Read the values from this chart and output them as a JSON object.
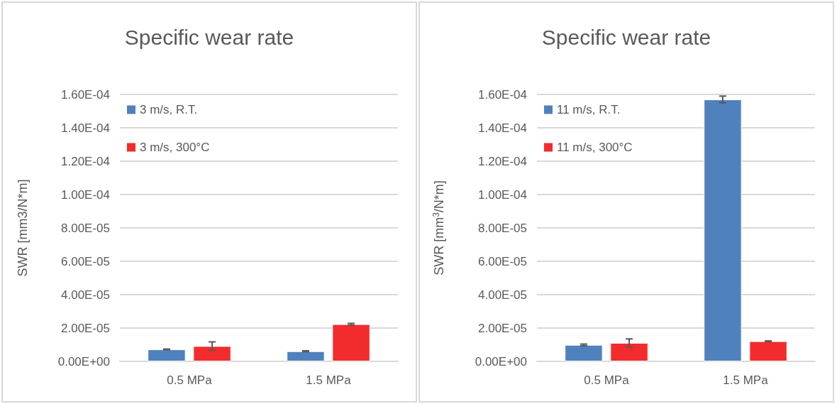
{
  "chart_data": [
    {
      "type": "bar",
      "title": "Specific wear rate",
      "ylabel": "SWR [mm3/N*m]",
      "categories": [
        "0.5 MPa",
        "1.5 MPa"
      ],
      "series": [
        {
          "name": "3 m/s, R.T.",
          "color": "#4f81bd",
          "values": [
            7.2e-06,
            6.1e-06
          ],
          "errors": [
            2e-07,
            3e-07
          ]
        },
        {
          "name": "3 m/s, 300°C",
          "color": "#f22c2c",
          "values": [
            9.2e-06,
            2.23e-05
          ],
          "errors": [
            2.5e-06,
            5e-07
          ]
        }
      ],
      "ylim": [
        0,
        0.00016
      ],
      "yticks": [
        {
          "value": 0,
          "label": "0.00E+00"
        },
        {
          "value": 2e-05,
          "label": "2.00E-05"
        },
        {
          "value": 4e-05,
          "label": "4.00E-05"
        },
        {
          "value": 6e-05,
          "label": "6.00E-05"
        },
        {
          "value": 8e-05,
          "label": "8.00E-05"
        },
        {
          "value": 0.0001,
          "label": "1.00E-04"
        },
        {
          "value": 0.00012,
          "label": "1.20E-04"
        },
        {
          "value": 0.00014,
          "label": "1.40E-04"
        },
        {
          "value": 0.00016,
          "label": "1.60E-04"
        }
      ],
      "grid": "y",
      "legend": "top left"
    },
    {
      "type": "bar",
      "title": "Specific wear rate",
      "ylabel": "SWR [mm$^{3}$/N*m]",
      "categories": [
        "0.5 MPa",
        "1.5 MPa"
      ],
      "series": [
        {
          "name": "11 m/s, R.T.",
          "color": "#4f81bd",
          "values": [
            9.9e-06,
            0.000157
          ],
          "errors": [
            5e-07,
            2e-06
          ]
        },
        {
          "name": "11 m/s, 300°C",
          "color": "#f22c2c",
          "values": [
            1.11e-05,
            1.21e-05
          ],
          "errors": [
            2.4e-06,
            2e-07
          ]
        }
      ],
      "ylim": [
        0,
        0.00016
      ],
      "yticks": [
        {
          "value": 0,
          "label": "0.00E+00"
        },
        {
          "value": 2e-05,
          "label": "2.00E-05"
        },
        {
          "value": 4e-05,
          "label": "4.00E-05"
        },
        {
          "value": 6e-05,
          "label": "6.00E-05"
        },
        {
          "value": 8e-05,
          "label": "8.00E-05"
        },
        {
          "value": 0.0001,
          "label": "1.00E-04"
        },
        {
          "value": 0.00012,
          "label": "1.20E-04"
        },
        {
          "value": 0.00014,
          "label": "1.40E-04"
        },
        {
          "value": 0.00016,
          "label": "1.60E-04"
        }
      ],
      "grid": "y",
      "legend": "top left"
    }
  ]
}
